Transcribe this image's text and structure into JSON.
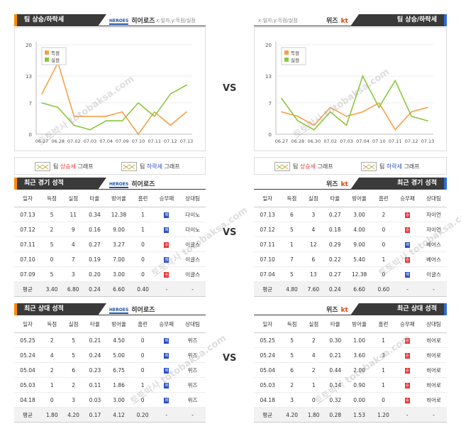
{
  "vs_label": "VS",
  "teams": {
    "home": "히어로즈",
    "away": "위즈",
    "home_logo": "HEROES",
    "away_logo": "kt"
  },
  "colors": {
    "orange": "#ff8a00",
    "blue": "#2f6bd1",
    "score_line": "#f5a04a",
    "concede_line": "#8cc63f",
    "win": "#e8363a",
    "loss": "#2a4fc4"
  },
  "sections": {
    "trend_left": "팀 상승/하락세",
    "trend_right": "팀 상승/하락세",
    "recent_left": "최근 경기 성적",
    "recent_right": "최근 경기 성적",
    "h2h_left": "최근 상대 성적",
    "h2h_right": "최근 상대 성적"
  },
  "axis_note": "x:일자,y:득점/실점",
  "legend": {
    "rise_prefix": "팀 ",
    "rise": "상승세",
    "rise_suffix": " 그래프",
    "fall_prefix": "팀 ",
    "fall": "하락세",
    "fall_suffix": " 그래프"
  },
  "chart_data": [
    {
      "type": "line",
      "categories": [
        "06.27",
        "06.28",
        "07.02",
        "07.03",
        "07.04",
        "07.09",
        "07.10",
        "07.11",
        "07.12",
        "07.13"
      ],
      "series": [
        {
          "name": "득점",
          "values": [
            9,
            16,
            4,
            4,
            4,
            5,
            0,
            5,
            2,
            5
          ]
        },
        {
          "name": "실점",
          "values": [
            7,
            6,
            2,
            1,
            3,
            3,
            7,
            4,
            9,
            11
          ]
        }
      ],
      "ylim": [
        0,
        20
      ],
      "yticks": [
        0,
        7,
        13,
        20
      ]
    },
    {
      "type": "line",
      "categories": [
        "06.27",
        "06.28",
        "06.30",
        "07.02",
        "07.03",
        "07.04",
        "07.10",
        "07.11",
        "07.12",
        "07.13"
      ],
      "series": [
        {
          "name": "득점",
          "values": [
            5,
            4,
            2,
            6,
            4,
            5,
            7,
            1,
            5,
            6
          ]
        },
        {
          "name": "실점",
          "values": [
            8,
            3,
            1,
            5,
            2,
            13,
            6,
            12,
            4,
            3
          ]
        }
      ],
      "ylim": [
        0,
        20
      ],
      "yticks": [
        0,
        7,
        13,
        20
      ]
    }
  ],
  "table_headers": [
    "일자",
    "득점",
    "실점",
    "타율",
    "방어율",
    "홈런",
    "승무패",
    "상대팀"
  ],
  "recent_left": {
    "rows": [
      [
        "07.13",
        "5",
        "11",
        "0.34",
        "12.38",
        "1",
        "패",
        "다이노"
      ],
      [
        "07.12",
        "2",
        "9",
        "0.16",
        "9.00",
        "1",
        "패",
        "다이노"
      ],
      [
        "07.11",
        "5",
        "4",
        "0.27",
        "3.27",
        "0",
        "승",
        "이글스"
      ],
      [
        "07.10",
        "0",
        "7",
        "0.19",
        "7.00",
        "0",
        "패",
        "이글스"
      ],
      [
        "07.09",
        "5",
        "3",
        "0.20",
        "3.00",
        "0",
        "승",
        "이글스"
      ]
    ],
    "avg": [
      "평균",
      "3.40",
      "6.80",
      "0.24",
      "6.60",
      "0.40",
      "-",
      "-"
    ]
  },
  "recent_right": {
    "rows": [
      [
        "07.13",
        "6",
        "3",
        "0.27",
        "3.00",
        "2",
        "승",
        "자이언"
      ],
      [
        "07.12",
        "5",
        "4",
        "0.18",
        "4.00",
        "0",
        "승",
        "자이언"
      ],
      [
        "07.11",
        "1",
        "12",
        "0.29",
        "9.00",
        "0",
        "패",
        "베어스"
      ],
      [
        "07.10",
        "7",
        "6",
        "0.22",
        "5.40",
        "1",
        "승",
        "베어스"
      ],
      [
        "07.04",
        "5",
        "13",
        "0.27",
        "12.38",
        "0",
        "패",
        "이글스"
      ]
    ],
    "avg": [
      "평균",
      "4.80",
      "7.60",
      "0.24",
      "6.60",
      "0.60",
      "-",
      "-"
    ]
  },
  "h2h_left": {
    "rows": [
      [
        "05.25",
        "2",
        "5",
        "0.21",
        "4.50",
        "0",
        "패",
        "위즈"
      ],
      [
        "05.24",
        "4",
        "5",
        "0.24",
        "5.00",
        "0",
        "패",
        "위즈"
      ],
      [
        "05.04",
        "2",
        "6",
        "0.23",
        "6.75",
        "0",
        "패",
        "위즈"
      ],
      [
        "05.03",
        "1",
        "2",
        "0.11",
        "1.86",
        "1",
        "패",
        "위즈"
      ],
      [
        "04.18",
        "0",
        "3",
        "0.03",
        "3.00",
        "0",
        "패",
        "위즈"
      ]
    ],
    "avg": [
      "평균",
      "1.80",
      "4.20",
      "0.17",
      "4.12",
      "0.20",
      "-",
      "-"
    ]
  },
  "h2h_right": {
    "rows": [
      [
        "05.25",
        "5",
        "2",
        "0.30",
        "1.00",
        "1",
        "승",
        "히어로"
      ],
      [
        "05.24",
        "5",
        "4",
        "0.21",
        "3.60",
        "3",
        "승",
        "히어로"
      ],
      [
        "05.04",
        "6",
        "2",
        "0.44",
        "2.00",
        "1",
        "승",
        "히어로"
      ],
      [
        "05.03",
        "2",
        "1",
        "0.14",
        "0.90",
        "1",
        "승",
        "히어로"
      ],
      [
        "04.18",
        "3",
        "0",
        "0.32",
        "0.00",
        "0",
        "승",
        "히어로"
      ]
    ],
    "avg": [
      "평균",
      "4.20",
      "1.80",
      "0.28",
      "1.53",
      "1.20",
      "-",
      "-"
    ]
  },
  "watermark": "토토박사 totobaksa.com"
}
